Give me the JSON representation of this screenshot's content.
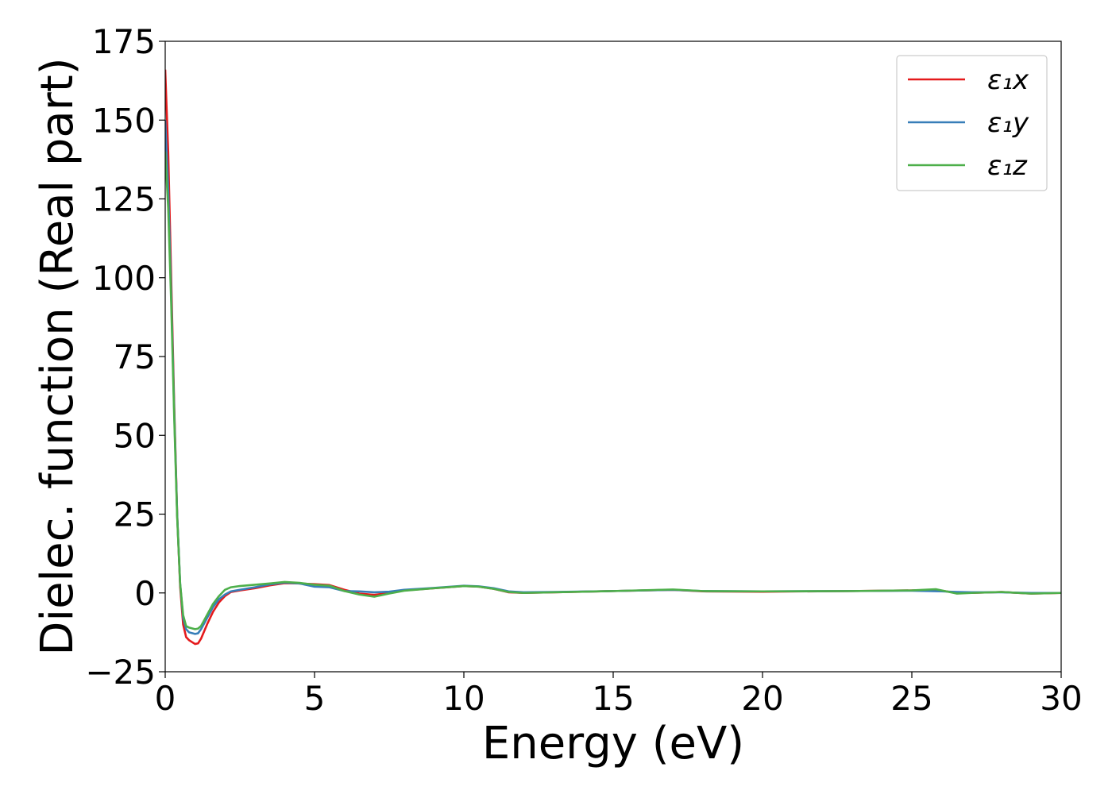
{
  "chart_data": {
    "type": "line",
    "xlabel": "Energy (eV)",
    "ylabel": "Dielec. function (Real part)",
    "xlim": [
      0,
      30
    ],
    "ylim": [
      -25,
      175
    ],
    "xticks": [
      "0",
      "5",
      "10",
      "15",
      "20",
      "25",
      "30"
    ],
    "yticks": [
      "−25",
      "0",
      "25",
      "50",
      "75",
      "100",
      "125",
      "150",
      "175"
    ],
    "grid": false,
    "legend_position": "top-right",
    "series": [
      {
        "name": "ε₁x",
        "color": "#e41a1c",
        "points": [
          [
            0,
            166
          ],
          [
            0.1,
            140
          ],
          [
            0.2,
            100
          ],
          [
            0.3,
            60
          ],
          [
            0.4,
            25
          ],
          [
            0.5,
            2
          ],
          [
            0.6,
            -10
          ],
          [
            0.7,
            -14
          ],
          [
            0.8,
            -15
          ],
          [
            1.0,
            -16.2
          ],
          [
            1.1,
            -16
          ],
          [
            1.2,
            -14.5
          ],
          [
            1.4,
            -10
          ],
          [
            1.6,
            -6
          ],
          [
            1.8,
            -3
          ],
          [
            2.0,
            -1
          ],
          [
            2.2,
            0.3
          ],
          [
            2.5,
            0.8
          ],
          [
            3.0,
            1.5
          ],
          [
            3.5,
            2.4
          ],
          [
            4.0,
            3.1
          ],
          [
            4.5,
            3.0
          ],
          [
            5.0,
            2.8
          ],
          [
            5.5,
            2.5
          ],
          [
            6.0,
            1.0
          ],
          [
            6.5,
            -0.2
          ],
          [
            7.0,
            -0.6
          ],
          [
            7.5,
            0.0
          ],
          [
            8.0,
            0.8
          ],
          [
            9.0,
            1.5
          ],
          [
            10.0,
            2.2
          ],
          [
            10.5,
            2.0
          ],
          [
            11.0,
            1.3
          ],
          [
            11.5,
            0.2
          ],
          [
            12.0,
            0.0
          ],
          [
            13.0,
            0.2
          ],
          [
            15.0,
            0.6
          ],
          [
            17.0,
            1.0
          ],
          [
            18.0,
            0.5
          ],
          [
            20.0,
            0.4
          ],
          [
            23.0,
            0.6
          ],
          [
            25.0,
            0.8
          ],
          [
            25.8,
            1.0
          ],
          [
            26.5,
            0.0
          ],
          [
            27.0,
            0.0
          ],
          [
            28.0,
            0.3
          ],
          [
            29.0,
            -0.2
          ],
          [
            30.0,
            0.0
          ]
        ]
      },
      {
        "name": "ε₁y",
        "color": "#377eb8",
        "points": [
          [
            0,
            150
          ],
          [
            0.1,
            128
          ],
          [
            0.2,
            95
          ],
          [
            0.3,
            58
          ],
          [
            0.4,
            25
          ],
          [
            0.5,
            3
          ],
          [
            0.6,
            -8
          ],
          [
            0.7,
            -11.5
          ],
          [
            0.8,
            -12.5
          ],
          [
            1.0,
            -13
          ],
          [
            1.1,
            -12.8
          ],
          [
            1.2,
            -11.5
          ],
          [
            1.4,
            -8
          ],
          [
            1.6,
            -4.5
          ],
          [
            1.8,
            -2
          ],
          [
            2.0,
            -0.5
          ],
          [
            2.2,
            0.5
          ],
          [
            2.5,
            1.0
          ],
          [
            3.0,
            1.8
          ],
          [
            3.5,
            2.7
          ],
          [
            4.0,
            3.3
          ],
          [
            4.5,
            3.0
          ],
          [
            5.0,
            2.0
          ],
          [
            5.5,
            1.8
          ],
          [
            6.0,
            0.6
          ],
          [
            6.5,
            0.5
          ],
          [
            7.0,
            0.2
          ],
          [
            7.5,
            0.4
          ],
          [
            8.0,
            1.0
          ],
          [
            9.0,
            1.6
          ],
          [
            10.0,
            2.3
          ],
          [
            10.5,
            2.1
          ],
          [
            11.0,
            1.5
          ],
          [
            11.5,
            0.5
          ],
          [
            12.0,
            0.2
          ],
          [
            13.0,
            0.3
          ],
          [
            15.0,
            0.6
          ],
          [
            17.0,
            1.0
          ],
          [
            18.0,
            0.6
          ],
          [
            20.0,
            0.5
          ],
          [
            23.0,
            0.6
          ],
          [
            25.0,
            0.7
          ],
          [
            26.0,
            0.5
          ],
          [
            26.5,
            0.3
          ],
          [
            27.0,
            0.2
          ],
          [
            28.0,
            0.2
          ],
          [
            29.0,
            0.0
          ],
          [
            30.0,
            0.0
          ]
        ]
      },
      {
        "name": "ε₁z",
        "color": "#4daf4a",
        "points": [
          [
            0,
            140
          ],
          [
            0.1,
            122
          ],
          [
            0.2,
            92
          ],
          [
            0.3,
            56
          ],
          [
            0.4,
            24
          ],
          [
            0.5,
            3
          ],
          [
            0.6,
            -7
          ],
          [
            0.7,
            -10.5
          ],
          [
            0.8,
            -11
          ],
          [
            1.0,
            -11.5
          ],
          [
            1.1,
            -11.3
          ],
          [
            1.2,
            -10.5
          ],
          [
            1.4,
            -7
          ],
          [
            1.6,
            -3.5
          ],
          [
            1.8,
            -1
          ],
          [
            2.0,
            1.0
          ],
          [
            2.2,
            1.8
          ],
          [
            2.5,
            2.2
          ],
          [
            3.0,
            2.6
          ],
          [
            3.5,
            3.0
          ],
          [
            4.0,
            3.5
          ],
          [
            4.5,
            3.2
          ],
          [
            5.0,
            2.6
          ],
          [
            5.5,
            2.3
          ],
          [
            6.0,
            0.6
          ],
          [
            6.5,
            -0.5
          ],
          [
            7.0,
            -1.2
          ],
          [
            7.5,
            -0.2
          ],
          [
            8.0,
            0.7
          ],
          [
            9.0,
            1.5
          ],
          [
            10.0,
            2.2
          ],
          [
            10.5,
            2.0
          ],
          [
            11.0,
            1.3
          ],
          [
            11.5,
            0.3
          ],
          [
            12.0,
            0.0
          ],
          [
            13.0,
            0.2
          ],
          [
            15.0,
            0.6
          ],
          [
            17.0,
            1.1
          ],
          [
            18.0,
            0.6
          ],
          [
            20.0,
            0.5
          ],
          [
            23.0,
            0.6
          ],
          [
            25.0,
            0.8
          ],
          [
            25.8,
            1.2
          ],
          [
            26.5,
            -0.2
          ],
          [
            27.0,
            0.0
          ],
          [
            28.0,
            0.3
          ],
          [
            29.0,
            -0.2
          ],
          [
            30.0,
            0.0
          ]
        ]
      }
    ]
  }
}
